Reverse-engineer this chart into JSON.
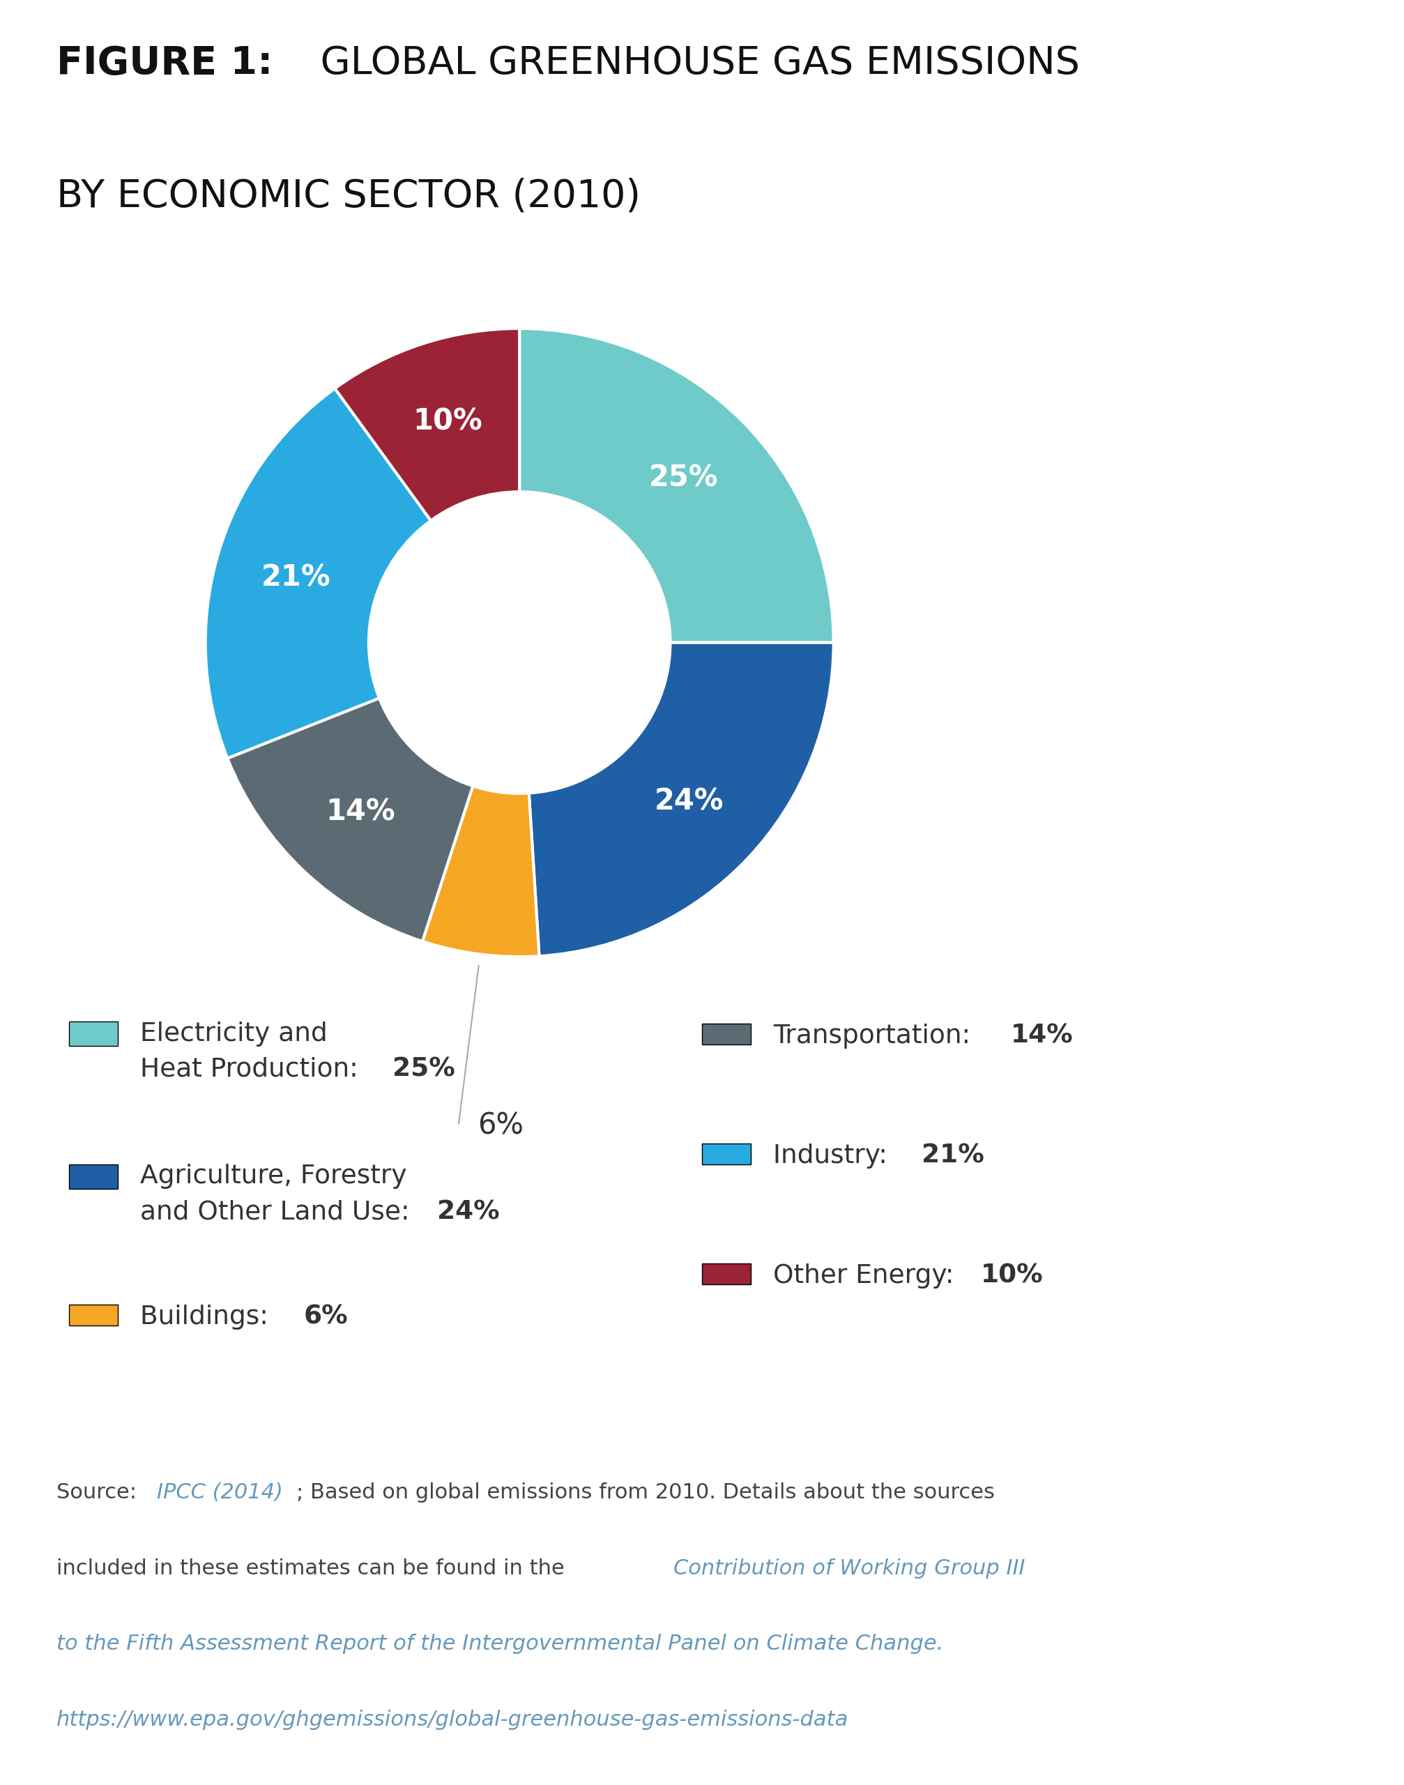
{
  "title_bold": "FIGURE 1:",
  "title_line1_rest": " GLOBAL GREENHOUSE GAS EMISSIONS",
  "title_line2": "BY ECONOMIC SECTOR (2010)",
  "slices": [
    25,
    24,
    6,
    14,
    21,
    10
  ],
  "colors": [
    "#6ECBCA",
    "#1F5FA6",
    "#F5A623",
    "#5C6B73",
    "#29ABE2",
    "#9B2335"
  ],
  "labels_in": [
    "25%",
    "24%",
    "",
    "14%",
    "21%",
    "10%"
  ],
  "start_angle": 90,
  "legend_items": [
    {
      "label_normal": "Electricity and\nHeat Production: ",
      "label_bold": "25%",
      "color": "#6ECBCA"
    },
    {
      "label_normal": "Agriculture, Forestry\nand Other Land Use: ",
      "label_bold": "24%",
      "color": "#1F5FA6"
    },
    {
      "label_normal": "Buildings: ",
      "label_bold": "6%",
      "color": "#F5A623"
    },
    {
      "label_normal": "Transportation: ",
      "label_bold": "14%",
      "color": "#5C6B73"
    },
    {
      "label_normal": "Industry: ",
      "label_bold": "21%",
      "color": "#29ABE2"
    },
    {
      "label_normal": "Other Energy: ",
      "label_bold": "10%",
      "color": "#9B2335"
    }
  ],
  "background_color": "#FFFFFF",
  "text_color": "#444444",
  "link_color": "#6699BB"
}
